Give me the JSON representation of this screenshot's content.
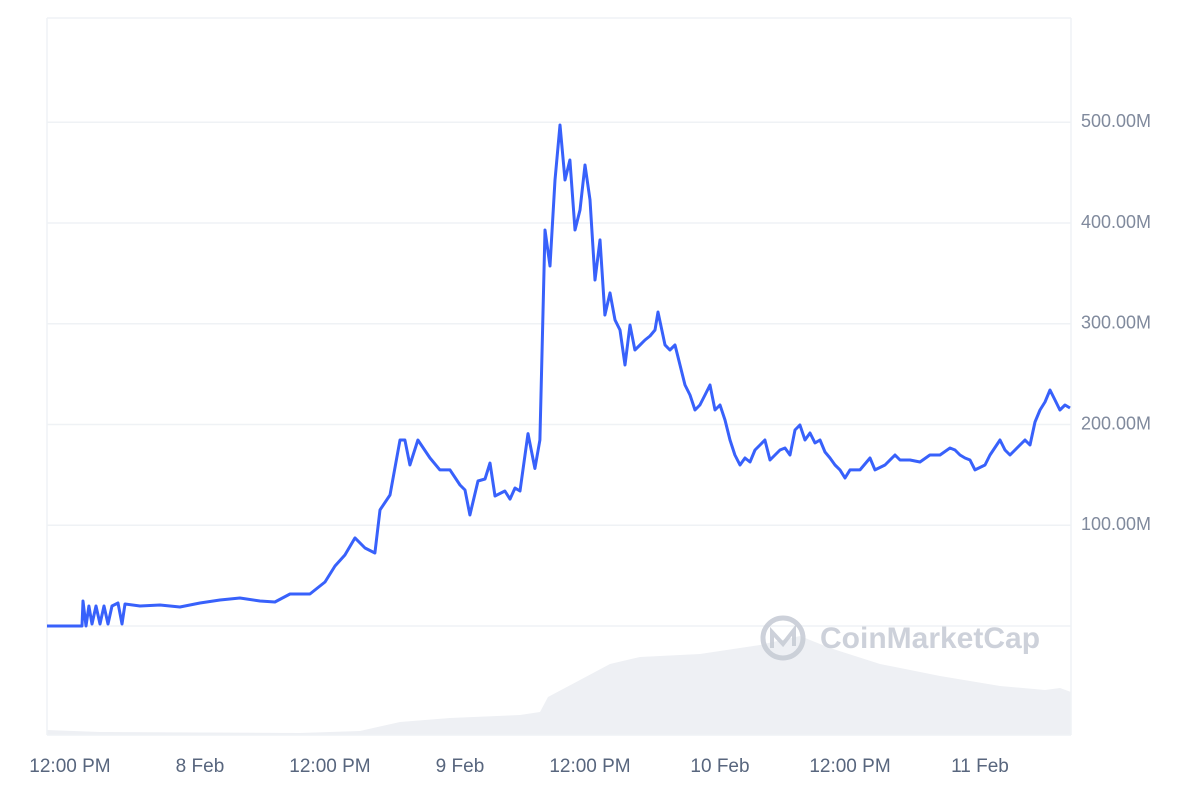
{
  "chart_data": {
    "type": "line",
    "watermark": "CoinMarketCap",
    "x": [
      -2.12,
      1.11,
      1.2,
      1.48,
      1.75,
      2.03,
      2.4,
      2.77,
      3.14,
      3.51,
      3.88,
      4.43,
      4.8,
      5.08,
      6.46,
      8.31,
      10.15,
      12.0,
      13.85,
      15.69,
      17.54,
      18.92,
      20.31,
      22.15,
      23.54,
      24.46,
      25.38,
      26.31,
      27.23,
      28.15,
      28.62,
      29.54,
      30.46,
      30.92,
      31.38,
      32.12,
      33.23,
      34.15,
      35.08,
      36.0,
      36.46,
      36.92,
      37.66,
      38.31,
      38.77,
      39.23,
      40.15,
      40.62,
      41.08,
      41.54,
      42.28,
      42.92,
      43.38,
      43.85,
      44.31,
      44.77,
      45.23,
      45.69,
      46.15,
      46.62,
      47.08,
      47.54,
      48.0,
      48.46,
      48.92,
      49.38,
      49.85,
      50.31,
      50.77,
      51.23,
      51.69,
      52.15,
      52.62,
      53.08,
      53.54,
      54.0,
      54.28,
      54.92,
      55.38,
      55.85,
      56.31,
      56.77,
      57.23,
      57.69,
      58.15,
      58.62,
      59.08,
      59.54,
      60.0,
      60.46,
      60.92,
      61.38,
      61.85,
      62.31,
      62.77,
      63.23,
      63.69,
      64.15,
      64.62,
      65.08,
      65.54,
      66.0,
      66.46,
      66.92,
      67.38,
      67.85,
      68.31,
      68.77,
      69.23,
      69.69,
      70.15,
      70.62,
      71.08,
      71.54,
      72.0,
      72.92,
      73.85,
      74.31,
      75.23,
      76.15,
      76.62,
      77.54,
      78.46,
      79.38,
      80.31,
      81.23,
      81.69,
      82.15,
      82.62,
      83.08,
      83.54,
      84.46,
      84.92,
      85.85,
      86.31,
      86.77,
      87.23,
      88.15,
      88.62,
      89.08,
      89.54,
      90.0,
      90.46,
      90.92,
      91.38,
      91.85,
      92.31
    ],
    "series": [
      {
        "color": "#3861fb",
        "values": [
          0,
          0,
          24.8,
          0,
          19.9,
          2.0,
          19.9,
          2.0,
          19.9,
          2.0,
          19.9,
          22.8,
          2.0,
          21.8,
          19.9,
          20.8,
          18.9,
          22.8,
          25.8,
          27.8,
          24.8,
          23.8,
          31.8,
          31.8,
          43.7,
          59.6,
          70.5,
          87.4,
          77.4,
          72.5,
          115.2,
          130.0,
          184.6,
          184.6,
          159.8,
          184.6,
          166.8,
          154.9,
          154.9,
          140.0,
          135.0,
          110.2,
          143.9,
          145.9,
          161.8,
          129.0,
          134.0,
          126.0,
          137.0,
          134.0,
          191.0,
          156.3,
          184.6,
          393.1,
          357.3,
          442.7,
          497.3,
          442.7,
          462.6,
          393.1,
          412.9,
          457.6,
          422.9,
          343.4,
          383.2,
          308.7,
          330.6,
          303.8,
          293.8,
          259.1,
          298.8,
          274.0,
          278.9,
          283.9,
          287.9,
          293.8,
          311.7,
          279.0,
          274.0,
          278.9,
          259.1,
          239.2,
          229.3,
          214.4,
          219.4,
          229.3,
          239.2,
          214.4,
          219.4,
          204.5,
          184.6,
          169.7,
          159.8,
          166.8,
          162.8,
          174.7,
          179.7,
          184.6,
          164.8,
          169.7,
          174.7,
          176.7,
          169.7,
          194.5,
          199.5,
          184.6,
          191.6,
          181.7,
          184.6,
          172.7,
          166.8,
          159.8,
          154.9,
          146.9,
          154.9,
          154.9,
          166.8,
          154.9,
          159.8,
          169.7,
          164.8,
          164.8,
          162.8,
          169.7,
          169.7,
          176.7,
          174.7,
          169.7,
          166.8,
          164.8,
          154.9,
          159.8,
          169.7,
          184.6,
          174.7,
          169.7,
          174.7,
          184.6,
          179.7,
          202.5,
          214.4,
          222.3,
          234.3,
          224.3,
          214.4,
          219.4,
          216.4
        ]
      }
    ],
    "xlim": [
      -2.12,
      92.4
    ],
    "xticks": [
      {
        "value": 0,
        "label": "12:00 PM"
      },
      {
        "value": 12,
        "label": "8 Feb"
      },
      {
        "value": 24,
        "label": "12:00 PM"
      },
      {
        "value": 36,
        "label": "9 Feb"
      },
      {
        "value": 48,
        "label": "12:00 PM"
      },
      {
        "value": 60,
        "label": "10 Feb"
      },
      {
        "value": 72,
        "label": "12:00 PM"
      },
      {
        "value": 84,
        "label": "11 Feb"
      }
    ],
    "ylim": [
      0,
      603.5
    ],
    "yticks": [
      {
        "value": 100,
        "label": "100.00M"
      },
      {
        "value": 200,
        "label": "200.00M"
      },
      {
        "value": 300,
        "label": "300.00M"
      },
      {
        "value": 400,
        "label": "400.00M"
      },
      {
        "value": 500,
        "label": "500.00M"
      }
    ],
    "grid": true
  }
}
